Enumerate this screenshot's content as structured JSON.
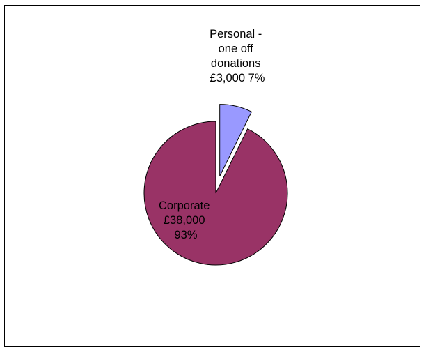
{
  "chart_data": {
    "type": "pie",
    "title": "",
    "slices": [
      {
        "value": 3000,
        "percent": 7,
        "color": "#9999ff",
        "exploded": true,
        "label_lines": [
          "Personal -",
          "one off",
          "donations",
          "£3,000 7%"
        ]
      },
      {
        "value": 38000,
        "percent": 93,
        "color": "#993366",
        "exploded": false,
        "label_lines": [
          "Corporate",
          "£38,000",
          "93%"
        ]
      }
    ],
    "legend": "none"
  }
}
